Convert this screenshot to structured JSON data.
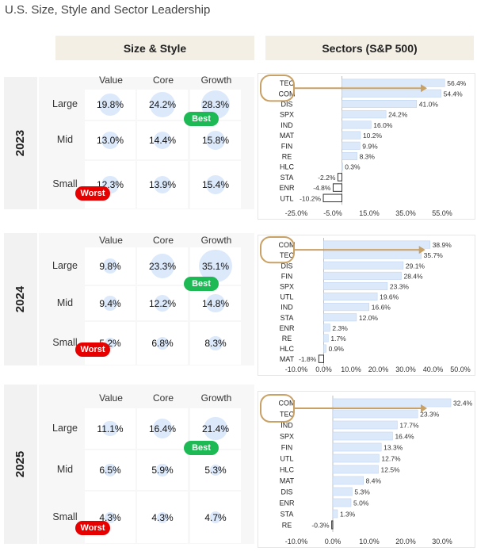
{
  "title": "U.S. Size, Style and Sector Leadership",
  "headers": {
    "size_style": "Size & Style",
    "sectors": "Sectors (S&P 500)"
  },
  "colors": {
    "bar": "#dce9fb",
    "bar_stroke": "#b9cfee",
    "neg_bar_stroke": "#333333",
    "arrow": "#c9a165",
    "best": "#1db954",
    "worst": "#e60000",
    "bubble": "#dce9fb"
  },
  "panels": [
    {
      "year": "2023",
      "columns": [
        "Value",
        "Core",
        "Growth"
      ],
      "rows": [
        "Large",
        "Mid",
        "Small"
      ],
      "values": [
        [
          "19.8%",
          "24.2%",
          "28.3%"
        ],
        [
          "13.0%",
          "14.4%",
          "15.8%"
        ],
        [
          "12.3%",
          "13.9%",
          "15.4%"
        ]
      ],
      "best_label": "Best",
      "worst_label": "Worst"
    },
    {
      "year": "2024",
      "columns": [
        "Value",
        "Core",
        "Growth"
      ],
      "rows": [
        "Large",
        "Mid",
        "Small"
      ],
      "values": [
        [
          "9.8%",
          "23.3%",
          "35.1%"
        ],
        [
          "9.4%",
          "12.2%",
          "14.8%"
        ],
        [
          "5.2%",
          "6.8%",
          "8.3%"
        ]
      ],
      "best_label": "Best",
      "worst_label": "Worst"
    },
    {
      "year": "2025",
      "columns": [
        "Value",
        "Core",
        "Growth"
      ],
      "rows": [
        "Large",
        "Mid",
        "Small"
      ],
      "values": [
        [
          "11.1%",
          "16.4%",
          "21.4%"
        ],
        [
          "6.5%",
          "5.9%",
          "5.3%"
        ],
        [
          "4.3%",
          "4.3%",
          "4.7%"
        ]
      ],
      "best_label": "Best",
      "worst_label": "Worst"
    }
  ],
  "chart_data": [
    {
      "type": "bar",
      "orientation": "horizontal",
      "title": "Sectors (S&P 500) 2023",
      "categories": [
        "TEC",
        "COM",
        "DIS",
        "SPX",
        "IND",
        "MAT",
        "FIN",
        "RE",
        "HLC",
        "STA",
        "ENR",
        "UTL"
      ],
      "values": [
        56.4,
        54.4,
        41.0,
        24.2,
        16.0,
        10.2,
        9.9,
        8.3,
        0.3,
        -2.2,
        -4.8,
        -10.2
      ],
      "labels": [
        "56.4%",
        "54.4%",
        "41.0%",
        "24.2%",
        "16.0%",
        "10.2%",
        "9.9%",
        "8.3%",
        "0.3%",
        "-2.2%",
        "-4.8%",
        "-10.2%"
      ],
      "xlim": [
        -25,
        65
      ],
      "ticks": [
        -25,
        -5,
        15,
        35,
        55
      ],
      "tick_labels": [
        "-25.0%",
        "-5.0%",
        "15.0%",
        "35.0%",
        "55.0%"
      ],
      "highlighted": [
        "TEC",
        "COM"
      ]
    },
    {
      "type": "bar",
      "orientation": "horizontal",
      "title": "Sectors (S&P 500) 2024",
      "categories": [
        "COM",
        "TEC",
        "DIS",
        "FIN",
        "SPX",
        "UTL",
        "IND",
        "STA",
        "ENR",
        "RE",
        "HLC",
        "MAT"
      ],
      "values": [
        38.9,
        35.7,
        29.1,
        28.4,
        23.3,
        19.6,
        16.6,
        12.0,
        2.3,
        1.7,
        0.9,
        -1.8
      ],
      "labels": [
        "38.9%",
        "35.7%",
        "29.1%",
        "28.4%",
        "23.3%",
        "19.6%",
        "16.6%",
        "12.0%",
        "2.3%",
        "1.7%",
        "0.9%",
        "-1.8%"
      ],
      "xlim": [
        -10,
        50
      ],
      "ticks": [
        -10,
        0,
        10,
        20,
        30,
        40,
        50
      ],
      "tick_labels": [
        "-10.0%",
        "0.0%",
        "10.0%",
        "20.0%",
        "30.0%",
        "40.0%",
        "50.0%"
      ],
      "highlighted": [
        "COM",
        "TEC"
      ]
    },
    {
      "type": "bar",
      "orientation": "horizontal",
      "title": "Sectors (S&P 500) 2025",
      "categories": [
        "COM",
        "TEC",
        "IND",
        "SPX",
        "FIN",
        "UTL",
        "HLC",
        "MAT",
        "DIS",
        "ENR",
        "STA",
        "RE"
      ],
      "values": [
        32.4,
        23.3,
        17.7,
        16.4,
        13.3,
        12.7,
        12.5,
        8.4,
        5.3,
        5.0,
        1.3,
        -0.3
      ],
      "labels": [
        "32.4%",
        "23.3%",
        "17.7%",
        "16.4%",
        "13.3%",
        "12.7%",
        "12.5%",
        "8.4%",
        "5.3%",
        "5.0%",
        "1.3%",
        "-0.3%"
      ],
      "xlim": [
        -10,
        35
      ],
      "ticks": [
        -10,
        0,
        10,
        20,
        30
      ],
      "tick_labels": [
        "-10.0%",
        "0.0%",
        "10.0%",
        "20.0%",
        "30.0%"
      ],
      "highlighted": [
        "COM",
        "TEC"
      ]
    }
  ]
}
